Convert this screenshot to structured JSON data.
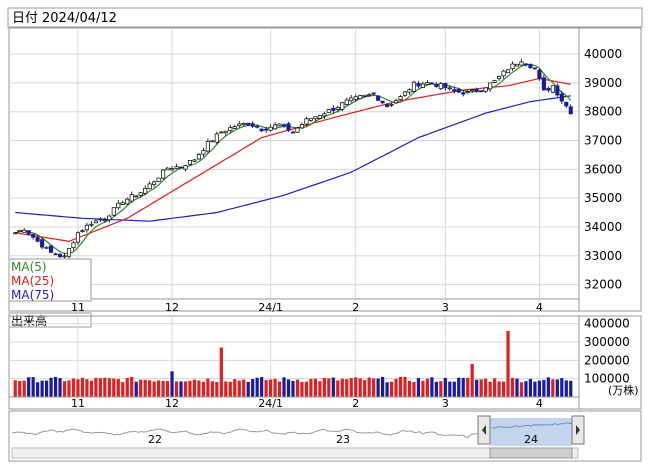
{
  "header": {
    "date_label": "日付",
    "date_value": "2024/04/12"
  },
  "legend": {
    "ma5": {
      "label": "MA(5)",
      "color": "#2d8a2d"
    },
    "ma25": {
      "label": "MA(25)",
      "color": "#e02020"
    },
    "ma75": {
      "label": "MA(75)",
      "color": "#2020c8"
    }
  },
  "volume_panel": {
    "title": "出来高",
    "unit": "(万株)"
  },
  "navigator": {
    "year_labels": [
      "22",
      "23",
      "24"
    ]
  },
  "colors": {
    "up": "#ffffff",
    "down": "#1a1aa0",
    "vol_up": "#e02020",
    "vol_down": "#1a1aa0",
    "grid": "#d8d8d8",
    "navigator_fill": "#b9cdea"
  },
  "chart_data": [
    {
      "type": "candlestick",
      "ylim": [
        31500,
        40800
      ],
      "y_ticks": [
        32000,
        33000,
        34000,
        35000,
        36000,
        37000,
        38000,
        39000,
        40000
      ],
      "x_tick_labels": [
        "11",
        "12",
        "24/1",
        "2",
        "3",
        "4"
      ],
      "x_tick_index": [
        14,
        35,
        57,
        76,
        96,
        117
      ],
      "ohlc_anchors": [
        {
          "i": 0,
          "c": 33800
        },
        {
          "i": 2,
          "c": 33950
        },
        {
          "i": 5,
          "c": 33500
        },
        {
          "i": 8,
          "c": 33100
        },
        {
          "i": 11,
          "c": 32950
        },
        {
          "i": 14,
          "c": 33800
        },
        {
          "i": 17,
          "c": 34150
        },
        {
          "i": 20,
          "c": 34300
        },
        {
          "i": 24,
          "c": 34900
        },
        {
          "i": 28,
          "c": 35200
        },
        {
          "i": 31,
          "c": 35600
        },
        {
          "i": 34,
          "c": 36050
        },
        {
          "i": 37,
          "c": 36100
        },
        {
          "i": 40,
          "c": 36350
        },
        {
          "i": 43,
          "c": 36900
        },
        {
          "i": 46,
          "c": 37300
        },
        {
          "i": 49,
          "c": 37500
        },
        {
          "i": 52,
          "c": 37600
        },
        {
          "i": 55,
          "c": 37400
        },
        {
          "i": 59,
          "c": 37550
        },
        {
          "i": 62,
          "c": 37300
        },
        {
          "i": 65,
          "c": 37700
        },
        {
          "i": 68,
          "c": 37900
        },
        {
          "i": 71,
          "c": 38100
        },
        {
          "i": 74,
          "c": 38350
        },
        {
          "i": 77,
          "c": 38500
        },
        {
          "i": 80,
          "c": 38600
        },
        {
          "i": 83,
          "c": 38200
        },
        {
          "i": 86,
          "c": 38500
        },
        {
          "i": 89,
          "c": 38950
        },
        {
          "i": 92,
          "c": 39000
        },
        {
          "i": 95,
          "c": 38900
        },
        {
          "i": 98,
          "c": 38700
        },
        {
          "i": 101,
          "c": 38650
        },
        {
          "i": 104,
          "c": 38800
        },
        {
          "i": 107,
          "c": 39050
        },
        {
          "i": 110,
          "c": 39500
        },
        {
          "i": 113,
          "c": 39800
        },
        {
          "i": 116,
          "c": 39500
        },
        {
          "i": 118,
          "c": 38700
        },
        {
          "i": 120,
          "c": 38900
        },
        {
          "i": 122,
          "c": 38400
        },
        {
          "i": 124,
          "c": 38000
        }
      ],
      "ma75_anchors": [
        {
          "i": 0,
          "v": 34500
        },
        {
          "i": 15,
          "v": 34300
        },
        {
          "i": 30,
          "v": 34200
        },
        {
          "i": 45,
          "v": 34500
        },
        {
          "i": 60,
          "v": 35100
        },
        {
          "i": 75,
          "v": 35900
        },
        {
          "i": 90,
          "v": 37100
        },
        {
          "i": 105,
          "v": 37950
        },
        {
          "i": 115,
          "v": 38350
        },
        {
          "i": 124,
          "v": 38550
        }
      ],
      "ma25_anchors": [
        {
          "i": 0,
          "v": 33800
        },
        {
          "i": 12,
          "v": 33500
        },
        {
          "i": 25,
          "v": 34300
        },
        {
          "i": 40,
          "v": 35700
        },
        {
          "i": 55,
          "v": 37100
        },
        {
          "i": 70,
          "v": 37750
        },
        {
          "i": 85,
          "v": 38350
        },
        {
          "i": 100,
          "v": 38750
        },
        {
          "i": 110,
          "v": 38900
        },
        {
          "i": 117,
          "v": 39150
        },
        {
          "i": 124,
          "v": 38950
        }
      ]
    },
    {
      "type": "bar",
      "ylim": [
        0,
        420000
      ],
      "y_ticks": [
        100000,
        200000,
        300000,
        400000
      ],
      "spikes": [
        {
          "i": 35,
          "v": 140000
        },
        {
          "i": 46,
          "v": 270000
        },
        {
          "i": 102,
          "v": 180000
        },
        {
          "i": 110,
          "v": 360000
        }
      ],
      "base_range": [
        80000,
        110000
      ]
    }
  ]
}
